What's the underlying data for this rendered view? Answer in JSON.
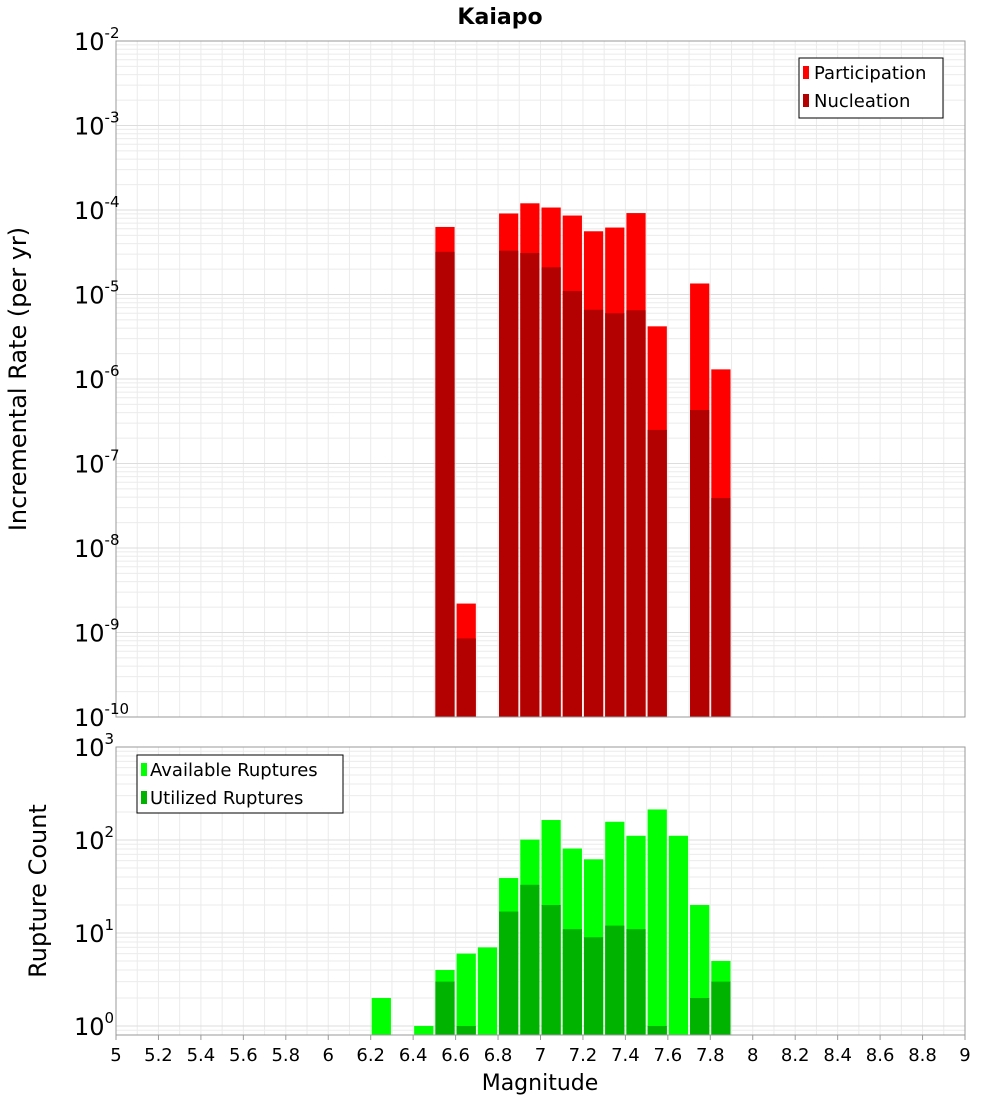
{
  "chart_data": [
    {
      "type": "bar",
      "title": "Kaiapo",
      "xlabel": "",
      "ylabel": "Incremental Rate (per yr)",
      "xlim": [
        5,
        9
      ],
      "ylim": [
        1e-10,
        0.01
      ],
      "yscale": "log",
      "y_tick_exponents": [
        "-2",
        "-3",
        "-4",
        "-5",
        "-6",
        "-7",
        "-8",
        "-9",
        "-10"
      ],
      "grid": true,
      "legend_position": "top-right",
      "bin_width": 0.1,
      "x": [
        6.55,
        6.65,
        6.85,
        6.95,
        7.05,
        7.15,
        7.25,
        7.35,
        7.45,
        7.55,
        7.75,
        7.85
      ],
      "series": [
        {
          "name": "Participation",
          "color": "#ff0000",
          "values": [
            6.3e-05,
            2.2e-09,
            9.1e-05,
            0.00012,
            0.000107,
            8.6e-05,
            5.6e-05,
            6.2e-05,
            9.2e-05,
            4.2e-06,
            1.35e-05,
            1.3e-06
          ]
        },
        {
          "name": "Nucleation",
          "color": "#b30000",
          "values": [
            3.2e-05,
            8.5e-10,
            3.3e-05,
            3.1e-05,
            2.1e-05,
            1.1e-05,
            6.6e-06,
            6e-06,
            6.5e-06,
            2.5e-07,
            4.3e-07,
            3.9e-08
          ]
        }
      ]
    },
    {
      "type": "bar",
      "xlabel": "Magnitude",
      "ylabel": "Rupture Count",
      "xlim": [
        5,
        9
      ],
      "ylim": [
        0.8,
        1000
      ],
      "yscale": "log",
      "y_tick_exponents": [
        "3",
        "2",
        "1",
        "0"
      ],
      "grid": true,
      "legend_position": "top-left",
      "bin_width": 0.1,
      "x_ticks": [
        "5",
        "5.2",
        "5.4",
        "5.6",
        "5.8",
        "6",
        "6.2",
        "6.4",
        "6.6",
        "6.8",
        "7",
        "7.2",
        "7.4",
        "7.6",
        "7.8",
        "8",
        "8.2",
        "8.4",
        "8.6",
        "8.8",
        "9"
      ],
      "x": [
        6.25,
        6.45,
        6.55,
        6.65,
        6.75,
        6.85,
        6.95,
        7.05,
        7.15,
        7.25,
        7.35,
        7.45,
        7.55,
        7.65,
        7.75,
        7.85
      ],
      "series": [
        {
          "name": "Available Ruptures",
          "color": "#00ff00",
          "values": [
            2,
            1,
            4,
            6,
            7,
            39,
            101,
            164,
            81,
            62,
            157,
            111,
            213,
            111,
            20,
            5
          ]
        },
        {
          "name": "Utilized Ruptures",
          "color": "#00b300",
          "values": [
            0,
            0,
            3,
            1,
            0,
            17,
            33,
            20,
            11,
            9,
            12,
            11,
            1,
            0,
            2,
            3
          ]
        }
      ]
    }
  ]
}
